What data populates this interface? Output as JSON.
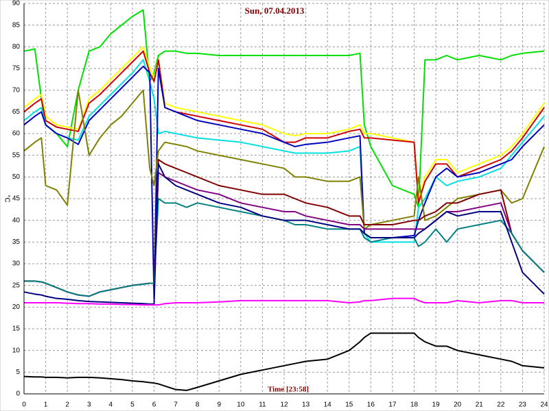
{
  "chart_data": {
    "type": "line",
    "title": "Sun, 07.04.2013",
    "x_label": "Time [23:58]",
    "y_label": "°C",
    "grid": true,
    "xlim": [
      0,
      24
    ],
    "xticks": [
      0,
      1,
      2,
      3,
      4,
      5,
      6,
      7,
      8,
      9,
      10,
      11,
      12,
      13,
      14,
      15,
      16,
      17,
      18,
      19,
      20,
      21,
      22,
      23,
      24
    ],
    "ylim": [
      0,
      90
    ],
    "yticks": [
      0,
      5,
      10,
      15,
      20,
      25,
      30,
      35,
      40,
      45,
      50,
      55,
      60,
      65,
      70,
      75,
      80,
      85,
      90
    ],
    "x": [
      0,
      0.5,
      0.8,
      1,
      1.5,
      2,
      2.5,
      3,
      3.5,
      4,
      4.5,
      5,
      5.5,
      5.8,
      6,
      6.2,
      6.5,
      7,
      7.5,
      8,
      9,
      10,
      11,
      12,
      12.5,
      13,
      14,
      15,
      15.5,
      15.7,
      16,
      17,
      18,
      18.2,
      18.5,
      19,
      19.5,
      20,
      21,
      22,
      22.5,
      23,
      24
    ],
    "series": [
      {
        "color": "#00e000",
        "values": [
          79,
          79.5,
          68,
          62,
          60,
          57,
          70,
          79,
          80,
          83,
          85,
          87,
          88.5,
          72,
          74,
          78,
          79,
          79,
          78.5,
          78.5,
          78,
          78,
          78,
          78,
          78,
          78,
          78,
          78,
          78.5,
          62,
          57,
          48,
          46,
          43,
          77,
          77,
          78,
          77,
          78,
          77,
          78,
          78.5,
          79
        ]
      },
      {
        "color": "#ffff00",
        "values": [
          66,
          68,
          69,
          64,
          62,
          61.5,
          61,
          68,
          70,
          72.5,
          75,
          77.5,
          80,
          75,
          73,
          77,
          67,
          66,
          65.5,
          65,
          64,
          63,
          62,
          60,
          59.5,
          60,
          60,
          61,
          62,
          60,
          60,
          59,
          58,
          45,
          50,
          54,
          54,
          51,
          53,
          55,
          57,
          60,
          67
        ]
      },
      {
        "color": "#d00000",
        "values": [
          65,
          67,
          68,
          63,
          61.5,
          61,
          60.5,
          67,
          69,
          71.5,
          74,
          76.5,
          79,
          74,
          72,
          77,
          66,
          65,
          64.5,
          64,
          63,
          62,
          61,
          58,
          58,
          59,
          59,
          60.5,
          61,
          59,
          59,
          58.5,
          58,
          44,
          49,
          53,
          53,
          50,
          52,
          54,
          56,
          59,
          66
        ]
      },
      {
        "color": "#00e0e0",
        "values": [
          63,
          65,
          66,
          62,
          60,
          59,
          58.5,
          64,
          66.5,
          69,
          71.5,
          74,
          77,
          72,
          68,
          60,
          60.5,
          60,
          59.5,
          59,
          58.5,
          58,
          57,
          56,
          55.5,
          55.5,
          55.5,
          56,
          57,
          37,
          35,
          35,
          35,
          43,
          45,
          50,
          48,
          49,
          50,
          52,
          55,
          58,
          64
        ]
      },
      {
        "color": "#0000c0",
        "values": [
          62,
          64,
          65,
          62,
          60,
          59,
          57.5,
          63,
          65.5,
          68,
          70.5,
          73,
          75.5,
          74,
          22,
          75,
          66,
          65,
          64,
          63,
          62,
          61,
          60,
          58,
          57,
          57.5,
          58,
          59,
          59.5,
          37,
          36,
          36,
          36.5,
          40,
          44,
          50,
          52,
          50,
          51,
          53,
          54,
          57,
          62
        ]
      },
      {
        "color": "#808000",
        "values": [
          56,
          58,
          59,
          48,
          47,
          43.5,
          70,
          55,
          59,
          62,
          64,
          67,
          70,
          52,
          48,
          56,
          58,
          57.5,
          57,
          56,
          55,
          54,
          53,
          52,
          50,
          50,
          49,
          49,
          50,
          38,
          39,
          40,
          41,
          50,
          40,
          41,
          43,
          45,
          46,
          47,
          44,
          45,
          57
        ]
      },
      {
        "color": "#800000",
        "values": [
          26,
          26,
          25.8,
          25.5,
          24.5,
          23.5,
          22.8,
          22.5,
          23.5,
          24,
          24.5,
          25,
          25.3,
          25.5,
          25.5,
          54,
          53,
          52,
          51,
          50,
          48,
          47,
          46,
          46,
          45,
          44,
          43,
          41,
          41,
          39,
          39,
          39,
          40,
          40,
          41,
          42,
          44,
          44,
          46,
          47,
          37,
          33,
          28
        ]
      },
      {
        "color": "#800080",
        "values": [
          26,
          26,
          25.8,
          25.5,
          24.5,
          23.5,
          22.8,
          22.5,
          23.5,
          24,
          24.5,
          25,
          25.3,
          25.5,
          25.5,
          51,
          50,
          49,
          48,
          47,
          46,
          44,
          43,
          42,
          42,
          41,
          40,
          39,
          39,
          38,
          38,
          38,
          38,
          38,
          38,
          40,
          42,
          42,
          43,
          44,
          37,
          33,
          28
        ]
      },
      {
        "color": "#008080",
        "values": [
          26,
          26,
          25.8,
          25.5,
          24.5,
          23.5,
          22.8,
          22.5,
          23.5,
          24,
          24.5,
          25,
          25.3,
          25.5,
          25.5,
          45,
          44,
          44,
          43,
          44,
          43,
          42,
          41,
          40,
          39,
          39,
          38,
          38,
          38,
          36,
          35,
          36,
          36,
          34,
          35,
          38,
          35,
          38,
          39,
          40,
          37,
          33,
          28
        ]
      },
      {
        "color": "#000080",
        "values": [
          23.5,
          23,
          22.8,
          22.5,
          22,
          21.8,
          21.5,
          21.3,
          21.2,
          21.1,
          21,
          20.9,
          20.8,
          20.7,
          20.7,
          53,
          50,
          48,
          47,
          46,
          44,
          43,
          41,
          40,
          40,
          40,
          39,
          38,
          38,
          37,
          36,
          36,
          36,
          37,
          38,
          40,
          42,
          41,
          42,
          42,
          35,
          28,
          23
        ]
      },
      {
        "color": "#ff00ff",
        "values": [
          21,
          21,
          21,
          21,
          21,
          20.9,
          20.8,
          20.8,
          20.7,
          20.7,
          20.6,
          20.6,
          20.5,
          20.5,
          20.5,
          20.5,
          20.8,
          21,
          21,
          21,
          21.2,
          21.5,
          21.5,
          21.5,
          21.5,
          21.5,
          21.5,
          21,
          21.2,
          21.5,
          21.5,
          22,
          22,
          21.5,
          21,
          21,
          21,
          21.5,
          21,
          21.5,
          21.5,
          21,
          21
        ]
      },
      {
        "color": "#000000",
        "values": [
          4,
          3.9,
          3.9,
          3.8,
          3.8,
          3.7,
          3.8,
          3.8,
          3.7,
          3.5,
          3.3,
          3,
          2.8,
          2.6,
          2.5,
          2.3,
          1.8,
          1,
          0.8,
          1.5,
          3,
          4.5,
          5.5,
          6.5,
          7,
          7.5,
          8,
          10,
          12,
          13,
          14,
          14,
          14,
          13,
          12,
          11,
          11,
          10,
          9,
          8,
          7.5,
          6.5,
          6
        ]
      }
    ]
  }
}
